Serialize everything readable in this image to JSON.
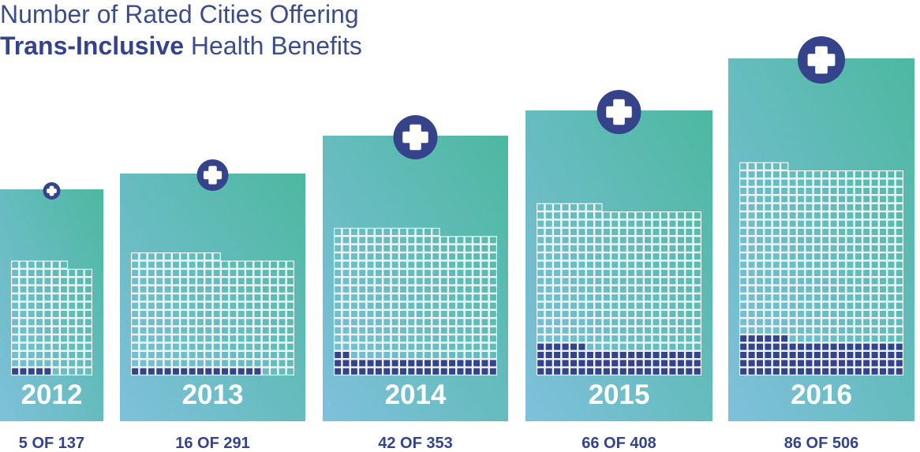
{
  "title_line1": "Number of Rated Cities Offering",
  "title_line2_bold": "Trans-Inclusive",
  "title_line2_rest": " Health Benefits",
  "colors": {
    "title": "#3d4c8a",
    "filled": "#34438a",
    "gradient_start": "#7fc0dc",
    "gradient_end": "#4db8a0",
    "icon_bg": "#34438a",
    "icon_cross": "#ffffff",
    "grid_line": "#ffffff"
  },
  "icon_name": "medical-cross-icon",
  "chart_data": {
    "type": "bar",
    "title": "Number of Rated Cities Offering Trans-Inclusive Health Benefits",
    "categories": [
      "2012",
      "2013",
      "2014",
      "2015",
      "2016"
    ],
    "series": [
      {
        "name": "Offering",
        "values": [
          5,
          16,
          42,
          66,
          86
        ]
      },
      {
        "name": "Rated",
        "values": [
          137,
          291,
          353,
          408,
          506
        ]
      }
    ],
    "labels": [
      "5 OF 137",
      "16 OF 291",
      "42 OF 353",
      "66 OF 408",
      "86 OF 506"
    ]
  }
}
